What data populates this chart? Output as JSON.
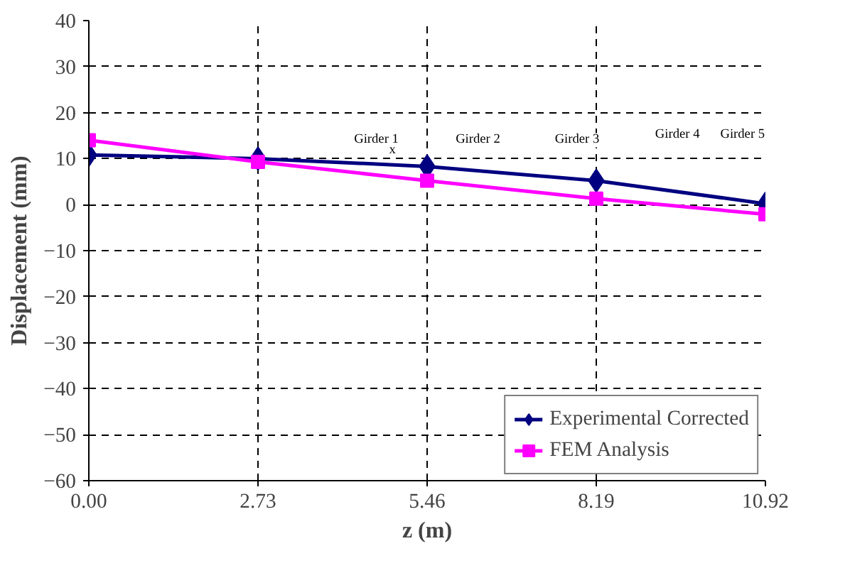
{
  "chart_data": {
    "type": "line",
    "xlabel": "z (m)",
    "ylabel": "Displacement (mm)",
    "x": [
      0.0,
      2.73,
      5.46,
      8.19,
      10.92
    ],
    "series": [
      {
        "name": "Experimental Corrected",
        "color": "#000080",
        "marker": "diamond",
        "values": [
          10.8,
          10.0,
          8.3,
          5.2,
          0.2
        ]
      },
      {
        "name": "FEM Analysis",
        "color": "#ff00ff",
        "marker": "square",
        "values": [
          14.0,
          9.3,
          5.2,
          1.3,
          -2.1
        ]
      }
    ],
    "xlim": [
      0,
      10.92
    ],
    "xticks": [
      {
        "value": 0,
        "label": "0.00"
      },
      2.73,
      5.46,
      8.19,
      10.92
    ],
    "ylim": [
      -60,
      40
    ],
    "yticks": [
      -60,
      -50,
      -40,
      -30,
      -20,
      -10,
      0,
      10,
      20,
      30,
      40
    ],
    "grid": true,
    "legend": "bottom right",
    "line_style": "solid",
    "annotations": [
      "Girder 1",
      "Girder 2",
      "Girder 3",
      "Girder 4",
      "Girder 5",
      "x"
    ]
  }
}
